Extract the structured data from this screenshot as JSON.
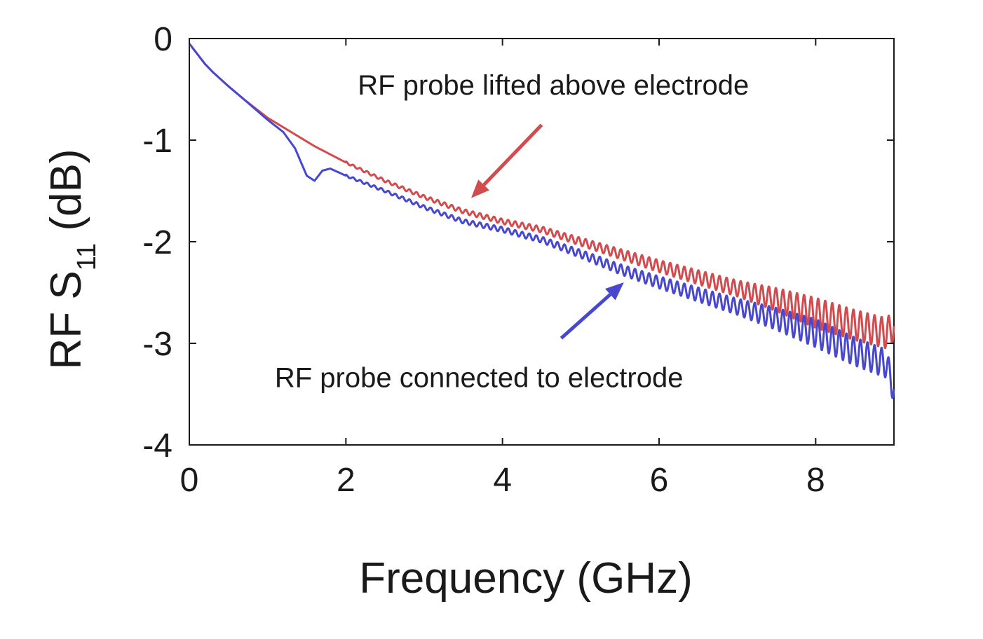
{
  "chart_data": {
    "type": "line",
    "xlabel": "Frequency (GHz)",
    "ylabel": {
      "main": "RF S",
      "subscript": "11",
      "unit": " (dB)"
    },
    "xlim": [
      0,
      9
    ],
    "ylim": [
      -4,
      0
    ],
    "xticks": [
      0,
      2,
      4,
      6,
      8
    ],
    "xtick_labels": [
      "0",
      "2",
      "4",
      "6",
      "8"
    ],
    "yticks": [
      0,
      -1,
      -2,
      -3,
      -4
    ],
    "ytick_labels": [
      "0",
      "-1",
      "-2",
      "-3",
      "-4"
    ],
    "grid": false,
    "box": true,
    "colors": {
      "lifted": "#d24b4e",
      "connected": "#4848cf",
      "axis": "#1a1a1a"
    },
    "series": [
      {
        "key": "lifted",
        "x": [
          0,
          0.1,
          0.2,
          0.3,
          0.5,
          0.7,
          1.0,
          1.3,
          1.6,
          2.0,
          2.5,
          3.0,
          3.5,
          4.0,
          4.5,
          5.0,
          5.5,
          6.0,
          6.5,
          7.0,
          7.5,
          8.0,
          8.5,
          8.9,
          9.0
        ],
        "y": [
          -0.05,
          -0.15,
          -0.25,
          -0.33,
          -0.47,
          -0.6,
          -0.78,
          -0.92,
          -1.06,
          -1.22,
          -1.4,
          -1.56,
          -1.7,
          -1.8,
          -1.88,
          -2.0,
          -2.12,
          -2.24,
          -2.35,
          -2.46,
          -2.57,
          -2.7,
          -2.82,
          -2.9,
          -2.83
        ],
        "ripple": {
          "x_start": [
            2.0,
            4.5,
            7.0,
            8.0
          ],
          "amplitude_db": [
            0.01,
            0.03,
            0.08,
            0.15
          ],
          "period_ghz": 0.09
        }
      },
      {
        "key": "connected",
        "x": [
          0,
          0.1,
          0.2,
          0.3,
          0.5,
          0.7,
          1.0,
          1.2,
          1.35,
          1.5,
          1.6,
          1.7,
          1.8,
          2.0,
          2.5,
          3.0,
          3.5,
          4.0,
          4.5,
          5.0,
          5.5,
          6.0,
          6.5,
          7.0,
          7.5,
          8.0,
          8.5,
          8.9,
          9.0
        ],
        "y": [
          -0.05,
          -0.15,
          -0.25,
          -0.33,
          -0.47,
          -0.6,
          -0.8,
          -0.92,
          -1.08,
          -1.35,
          -1.4,
          -1.3,
          -1.28,
          -1.35,
          -1.5,
          -1.66,
          -1.8,
          -1.88,
          -1.98,
          -2.12,
          -2.27,
          -2.4,
          -2.52,
          -2.64,
          -2.76,
          -2.9,
          -3.08,
          -3.2,
          -3.45
        ],
        "ripple": {
          "x_start": [
            2.0,
            4.5,
            7.0,
            8.0
          ],
          "amplitude_db": [
            0.01,
            0.03,
            0.08,
            0.14
          ],
          "period_ghz": 0.09
        }
      }
    ],
    "annotations": [
      {
        "key": "lifted",
        "text": "RF probe lifted above electrode",
        "text_xy": [
          4.65,
          -0.55
        ],
        "arrow_from": [
          4.5,
          -0.85
        ],
        "arrow_to": [
          3.6,
          -1.57
        ]
      },
      {
        "key": "connected",
        "text": "RF probe connected to electrode",
        "text_xy": [
          3.7,
          -3.43
        ],
        "arrow_from": [
          4.75,
          -2.95
        ],
        "arrow_to": [
          5.55,
          -2.4
        ]
      }
    ]
  }
}
